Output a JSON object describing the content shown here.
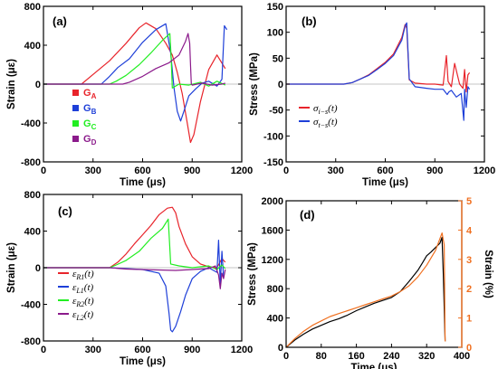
{
  "chart_data": [
    {
      "panel": "(a)",
      "type": "line",
      "xlabel": "Time (μs)",
      "ylabel": "Strain (με)",
      "xlim": [
        0,
        1200
      ],
      "ylim": [
        -800,
        800
      ],
      "xticks": [
        "0",
        "300",
        "600",
        "900",
        "1200"
      ],
      "yticks": [
        "800",
        "400",
        "0",
        "-400",
        "-800"
      ],
      "legend_position": "center-left",
      "series": [
        {
          "name": "G",
          "sub": "A",
          "color": "#e8242b",
          "x": [
            0,
            230,
            300,
            400,
            500,
            580,
            620,
            680,
            740,
            780,
            810,
            840,
            870,
            890,
            910,
            950,
            1000,
            1050,
            1100
          ],
          "y": [
            0,
            0,
            100,
            240,
            420,
            580,
            630,
            570,
            420,
            300,
            120,
            -100,
            -400,
            -600,
            -520,
            -180,
            150,
            300,
            160
          ]
        },
        {
          "name": "G",
          "sub": "B",
          "color": "#1e3fd8",
          "x": [
            0,
            350,
            400,
            450,
            520,
            600,
            680,
            740,
            770,
            790,
            810,
            830,
            850,
            880,
            920,
            960,
            1000,
            1050,
            1080,
            1095,
            1110
          ],
          "y": [
            0,
            0,
            80,
            170,
            260,
            430,
            560,
            620,
            320,
            -40,
            -280,
            -380,
            -280,
            -120,
            -50,
            10,
            30,
            -20,
            50,
            600,
            560
          ]
        },
        {
          "name": "G",
          "sub": "C",
          "color": "#22ee22",
          "x": [
            0,
            400,
            440,
            500,
            580,
            650,
            720,
            765,
            772,
            780,
            820,
            880,
            950,
            1000,
            1050,
            1100
          ],
          "y": [
            0,
            0,
            30,
            90,
            200,
            320,
            450,
            520,
            300,
            -40,
            0,
            -10,
            20,
            -20,
            30,
            -10
          ]
        },
        {
          "name": "G",
          "sub": "D",
          "color": "#8b1a8b",
          "x": [
            0,
            480,
            520,
            600,
            680,
            760,
            820,
            860,
            875,
            885,
            890,
            895,
            900,
            960,
            1020,
            1080,
            1100
          ],
          "y": [
            0,
            0,
            20,
            80,
            160,
            220,
            300,
            440,
            520,
            420,
            200,
            0,
            -10,
            10,
            -10,
            0,
            10
          ]
        }
      ]
    },
    {
      "panel": "(b)",
      "type": "line",
      "xlabel": "Time (μs)",
      "ylabel": "Stress (MPa)",
      "xlim": [
        0,
        1200
      ],
      "ylim": [
        -150,
        150
      ],
      "xticks": [
        "0",
        "300",
        "600",
        "900",
        "1200"
      ],
      "yticks": [
        "150",
        "100",
        "50",
        "0",
        "-50",
        "-100",
        "-150"
      ],
      "legend_position": "bottom-left",
      "series": [
        {
          "name": "σ",
          "sub": "i−s",
          "suffix": "(t)",
          "color": "#e8242b",
          "x": [
            0,
            350,
            400,
            450,
            500,
            550,
            600,
            650,
            700,
            720,
            730,
            745,
            780,
            850,
            900,
            950,
            970,
            980,
            990,
            1000,
            1020,
            1050,
            1070,
            1080,
            1090,
            1100,
            1110
          ],
          "y": [
            0,
            0,
            3,
            10,
            18,
            30,
            42,
            58,
            90,
            115,
            108,
            8,
            2,
            0,
            0,
            -2,
            55,
            5,
            0,
            -5,
            40,
            0,
            -8,
            28,
            -15,
            18,
            22
          ]
        },
        {
          "name": "σ",
          "sub": "t−s",
          "suffix": "(t)",
          "color": "#1e3fd8",
          "x": [
            0,
            350,
            400,
            450,
            500,
            550,
            600,
            650,
            700,
            720,
            730,
            745,
            780,
            850,
            900,
            950,
            975,
            985,
            1000,
            1030,
            1060,
            1075,
            1080,
            1090,
            1100,
            1110
          ],
          "y": [
            0,
            0,
            3,
            10,
            17,
            28,
            40,
            55,
            85,
            112,
            118,
            10,
            -5,
            -8,
            -10,
            -10,
            -20,
            -15,
            -12,
            -25,
            -18,
            -70,
            -10,
            -45,
            -5,
            -10
          ]
        }
      ]
    },
    {
      "panel": "(c)",
      "type": "line",
      "xlabel": "Time (μs)",
      "ylabel": "Strain (με)",
      "xlim": [
        0,
        1200
      ],
      "ylim": [
        -800,
        800
      ],
      "xticks": [
        "0",
        "300",
        "600",
        "900",
        "1200"
      ],
      "yticks": [
        "800",
        "400",
        "0",
        "-400",
        "-800"
      ],
      "legend_position": "bottom-left",
      "series": [
        {
          "name": "ε",
          "sub": "R1",
          "suffix": "(t)",
          "color": "#e8242b",
          "x": [
            0,
            400,
            450,
            500,
            550,
            600,
            650,
            700,
            750,
            780,
            800,
            820,
            860,
            900,
            950,
            1000,
            1050,
            1080,
            1100
          ],
          "y": [
            0,
            0,
            60,
            150,
            260,
            360,
            460,
            580,
            650,
            660,
            600,
            450,
            260,
            120,
            40,
            10,
            0,
            100,
            60
          ]
        },
        {
          "name": "ε",
          "sub": "L1",
          "suffix": "(t)",
          "color": "#1e3fd8",
          "x": [
            0,
            400,
            500,
            600,
            700,
            740,
            760,
            770,
            780,
            800,
            830,
            860,
            900,
            950,
            1000,
            1050,
            1060,
            1070,
            1080,
            1090
          ],
          "y": [
            0,
            0,
            -10,
            -20,
            -60,
            -200,
            -500,
            -680,
            -700,
            -640,
            -480,
            -300,
            -120,
            -40,
            0,
            -50,
            300,
            -180,
            180,
            -100
          ]
        },
        {
          "name": "ε",
          "sub": "R2",
          "suffix": "(t)",
          "color": "#22ee22",
          "x": [
            0,
            400,
            440,
            500,
            580,
            650,
            720,
            755,
            762,
            770,
            820,
            900,
            1000,
            1050,
            1080,
            1100
          ],
          "y": [
            0,
            0,
            30,
            80,
            180,
            320,
            430,
            530,
            300,
            40,
            20,
            0,
            20,
            -20,
            30,
            -10
          ]
        },
        {
          "name": "ε",
          "sub": "L2",
          "suffix": "(t)",
          "color": "#8b1a8b",
          "x": [
            0,
            400,
            500,
            600,
            700,
            800,
            900,
            1000,
            1040,
            1060,
            1070,
            1080,
            1090,
            1100
          ],
          "y": [
            0,
            0,
            -15,
            -20,
            -25,
            -30,
            -20,
            -10,
            20,
            -80,
            -230,
            -60,
            -120,
            -20
          ]
        }
      ]
    },
    {
      "panel": "(d)",
      "type": "line",
      "xlabel": "Time (μs)",
      "ylabel": "Stress (MPa)",
      "y2label": "Strain (%)",
      "xlim": [
        0,
        400
      ],
      "ylim": [
        0,
        2000
      ],
      "y2lim": [
        0,
        5
      ],
      "xticks": [
        "0",
        "80",
        "160",
        "240",
        "320",
        "400"
      ],
      "yticks": [
        "2000",
        "1600",
        "1200",
        "800",
        "400",
        "0"
      ],
      "y2ticks": [
        "5",
        "4",
        "3",
        "2",
        "1",
        "0"
      ],
      "y2_color": "#f07020",
      "series": [
        {
          "name": "stress",
          "axis": "left",
          "color": "#000000",
          "x": [
            0,
            20,
            40,
            60,
            80,
            100,
            120,
            140,
            160,
            180,
            200,
            220,
            240,
            260,
            280,
            300,
            310,
            320,
            330,
            340,
            350,
            355,
            358,
            362
          ],
          "y": [
            0,
            100,
            180,
            250,
            300,
            350,
            390,
            440,
            500,
            550,
            600,
            640,
            680,
            760,
            900,
            1050,
            1150,
            1250,
            1300,
            1360,
            1420,
            1500,
            1000,
            80
          ]
        },
        {
          "name": "strain",
          "axis": "right",
          "color": "#f07020",
          "x": [
            0,
            20,
            40,
            60,
            80,
            100,
            120,
            140,
            160,
            180,
            200,
            220,
            240,
            260,
            280,
            300,
            320,
            340,
            350,
            355,
            360,
            362
          ],
          "y": [
            0,
            0.3,
            0.55,
            0.75,
            0.9,
            1.05,
            1.15,
            1.25,
            1.35,
            1.45,
            1.55,
            1.65,
            1.75,
            1.9,
            2.1,
            2.4,
            2.8,
            3.3,
            3.7,
            3.9,
            3.5,
            0.2
          ]
        }
      ]
    }
  ]
}
